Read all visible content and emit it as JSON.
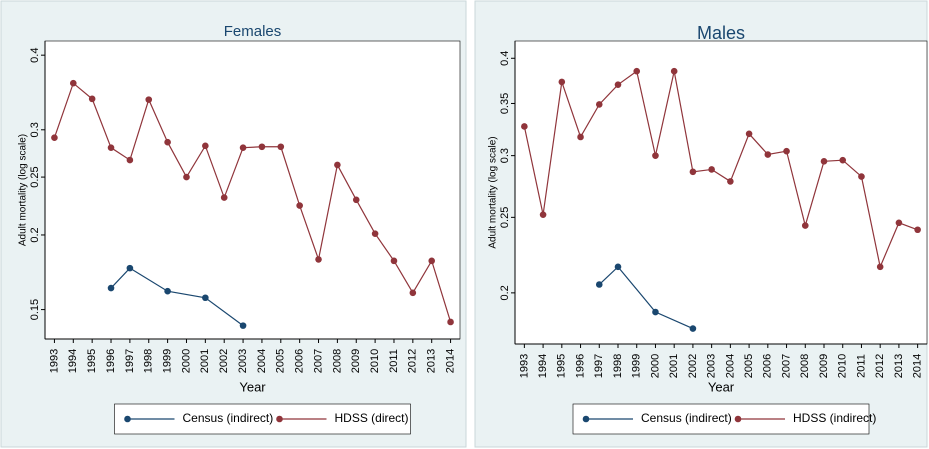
{
  "chart_data": [
    {
      "type": "line",
      "title": "Females",
      "y_label": "Adult mortality (log scale)",
      "x_label": "Year",
      "log_y": true,
      "ylim": [
        0.136,
        0.416
      ],
      "yticks": [
        0.15,
        0.2,
        0.25,
        0.3,
        0.4
      ],
      "xlim": [
        1992.5,
        2014.5
      ],
      "xticks": [
        1993,
        1994,
        1995,
        1996,
        1997,
        1998,
        1999,
        2000,
        2001,
        2002,
        2003,
        2004,
        2005,
        2006,
        2007,
        2008,
        2009,
        2010,
        2011,
        2012,
        2013,
        2014
      ],
      "series": [
        {
          "name": "Census (indirect)",
          "color": "#1a476f",
          "x": [
            1996,
            1997,
            1999,
            2001,
            2003
          ],
          "values": [
            0.163,
            0.176,
            0.161,
            0.157,
            0.141
          ]
        },
        {
          "name": "HDSS (direct)",
          "color": "#90353b",
          "x": [
            1993,
            1994,
            1995,
            1996,
            1997,
            1998,
            1999,
            2000,
            2001,
            2002,
            2003,
            2004,
            2005,
            2006,
            2007,
            2008,
            2009,
            2010,
            2011,
            2012,
            2013,
            2014
          ],
          "values": [
            0.291,
            0.359,
            0.338,
            0.28,
            0.267,
            0.337,
            0.286,
            0.25,
            0.282,
            0.231,
            0.28,
            0.281,
            0.281,
            0.224,
            0.182,
            0.262,
            0.229,
            0.201,
            0.181,
            0.16,
            0.181,
            0.143
          ]
        }
      ]
    },
    {
      "type": "line",
      "title": "Males",
      "y_label": "Adult mortality (log scale)",
      "x_label": "Year",
      "log_y": true,
      "ylim": [
        0.174,
        0.416
      ],
      "yticks": [
        0.2,
        0.25,
        0.3,
        0.35,
        0.4
      ],
      "xlim": [
        1992.5,
        2014.5
      ],
      "xticks": [
        1993,
        1994,
        1995,
        1996,
        1997,
        1998,
        1999,
        2000,
        2001,
        2002,
        2003,
        2004,
        2005,
        2006,
        2007,
        2008,
        2009,
        2010,
        2011,
        2012,
        2013,
        2014
      ],
      "series": [
        {
          "name": "Census (indirect)",
          "color": "#1a476f",
          "x": [
            1997,
            1998,
            2000,
            2002
          ],
          "values": [
            0.205,
            0.216,
            0.189,
            0.18
          ]
        },
        {
          "name": "HDSS (indirect)",
          "color": "#90353b",
          "x": [
            1993,
            1994,
            1995,
            1996,
            1997,
            1998,
            1999,
            2000,
            2001,
            2002,
            2003,
            2004,
            2005,
            2006,
            2007,
            2008,
            2009,
            2010,
            2011,
            2012,
            2013,
            2014
          ],
          "values": [
            0.327,
            0.252,
            0.373,
            0.317,
            0.349,
            0.37,
            0.385,
            0.3,
            0.385,
            0.286,
            0.288,
            0.278,
            0.32,
            0.301,
            0.304,
            0.244,
            0.295,
            0.296,
            0.282,
            0.216,
            0.246,
            0.241
          ]
        }
      ]
    }
  ]
}
